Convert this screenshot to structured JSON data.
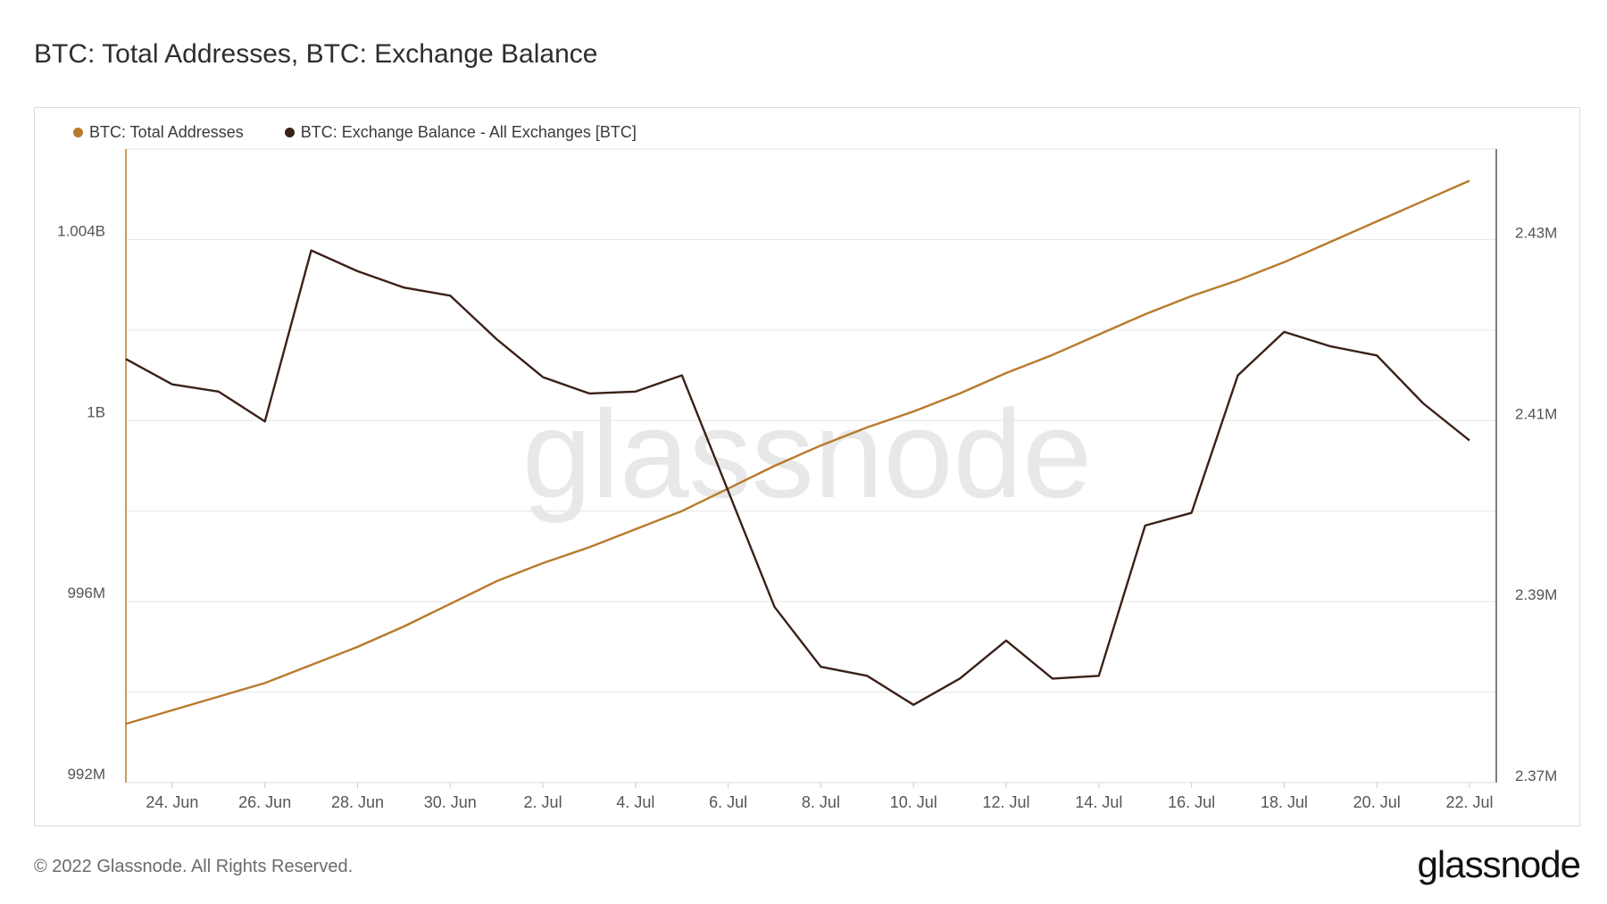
{
  "title": "BTC: Total Addresses, BTC: Exchange Balance",
  "watermark": "glassnode",
  "footer": {
    "copyright": "© 2022 Glassnode. All Rights Reserved.",
    "brand": "glassnode"
  },
  "colors": {
    "total_addresses": "#b87a2a",
    "exchange_balance": "#3a2118",
    "grid": "#e6e6e6"
  },
  "legend": [
    {
      "label": "BTC: Total Addresses",
      "color": "#b87a2a"
    },
    {
      "label": "BTC: Exchange Balance - All Exchanges [BTC]",
      "color": "#3a2118"
    }
  ],
  "chart_data": {
    "type": "line",
    "title": "BTC: Total Addresses, BTC: Exchange Balance",
    "x": [
      "23 Jun",
      "24 Jun",
      "25 Jun",
      "26 Jun",
      "27 Jun",
      "28 Jun",
      "29 Jun",
      "30 Jun",
      "1 Jul",
      "2 Jul",
      "3 Jul",
      "4 Jul",
      "5 Jul",
      "6 Jul",
      "7 Jul",
      "8 Jul",
      "9 Jul",
      "10 Jul",
      "11 Jul",
      "12 Jul",
      "13 Jul",
      "14 Jul",
      "15 Jul",
      "16 Jul",
      "17 Jul",
      "18 Jul",
      "19 Jul",
      "20 Jul",
      "21 Jul",
      "22 Jul"
    ],
    "x_ticks": [
      "24. Jun",
      "26. Jun",
      "28. Jun",
      "30. Jun",
      "2. Jul",
      "4. Jul",
      "6. Jul",
      "8. Jul",
      "10. Jul",
      "12. Jul",
      "14. Jul",
      "16. Jul",
      "18. Jul",
      "20. Jul",
      "22. Jul"
    ],
    "x_tick_index": [
      1,
      3,
      5,
      7,
      9,
      11,
      13,
      15,
      17,
      19,
      21,
      23,
      25,
      27,
      29
    ],
    "y_left": {
      "ticks": [
        992000000,
        996000000,
        1000000000,
        1004000000
      ],
      "tick_labels": [
        "992M",
        "996M",
        "1B",
        "1.004B"
      ],
      "range": [
        992000000,
        1006000000
      ]
    },
    "y_right": {
      "ticks": [
        2370000,
        2390000,
        2410000,
        2430000
      ],
      "tick_labels": [
        "2.37M",
        "2.39M",
        "2.41M",
        "2.43M"
      ],
      "range": [
        2370000,
        2440000
      ]
    },
    "grid": true,
    "legend_position": "top-left",
    "series": [
      {
        "name": "BTC: Total Addresses",
        "axis": "left",
        "color": "#b87a2a",
        "values": [
          993300000,
          993600000,
          993900000,
          994200000,
          994600000,
          995000000,
          995450000,
          995950000,
          996450000,
          996850000,
          997200000,
          997600000,
          998000000,
          998500000,
          999000000,
          999450000,
          999850000,
          1000200000,
          1000600000,
          1001050000,
          1001450000,
          1001900000,
          1002350000,
          1002750000,
          1003100000,
          1003500000,
          1003950000,
          1004400000,
          1004850000,
          1005300000
        ]
      },
      {
        "name": "BTC: Exchange Balance - All Exchanges [BTC]",
        "axis": "right",
        "color": "#3a2118",
        "values": [
          2416800,
          2414000,
          2413200,
          2409900,
          2428800,
          2426500,
          2424700,
          2423800,
          2419000,
          2414800,
          2413000,
          2413200,
          2415000,
          2402200,
          2389400,
          2382800,
          2381800,
          2378600,
          2381500,
          2385700,
          2381500,
          2381800,
          2398400,
          2399800,
          2415000,
          2419800,
          2418200,
          2417200,
          2411900,
          2407800
        ]
      }
    ]
  }
}
